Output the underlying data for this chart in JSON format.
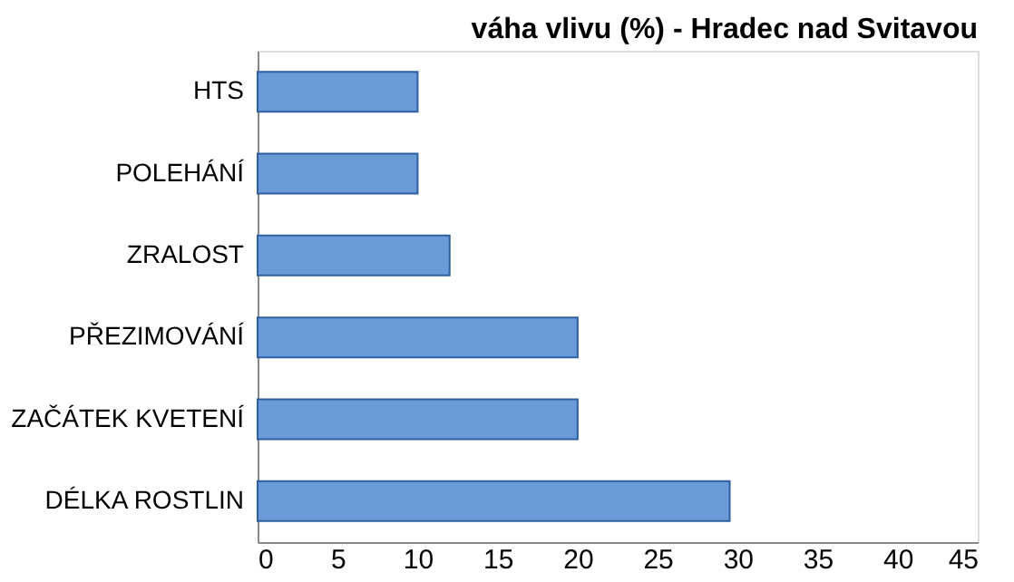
{
  "chart_data": {
    "type": "bar",
    "orientation": "horizontal",
    "title": "váha vlivu (%) - Hradec nad Svitavou",
    "categories": [
      "HTS",
      "POLEHÁNÍ",
      "ZRALOST",
      "PŘEZIMOVÁNÍ",
      "ZAČÁTEK KVETENÍ",
      "DÉLKA ROSTLIN"
    ],
    "values": [
      10,
      10,
      12,
      20,
      20,
      29.5
    ],
    "color": "#6a9ad8",
    "xlim": [
      0,
      45
    ],
    "xticks": [
      0,
      5,
      10,
      15,
      20,
      25,
      30,
      35,
      40,
      45
    ],
    "grid": false
  }
}
